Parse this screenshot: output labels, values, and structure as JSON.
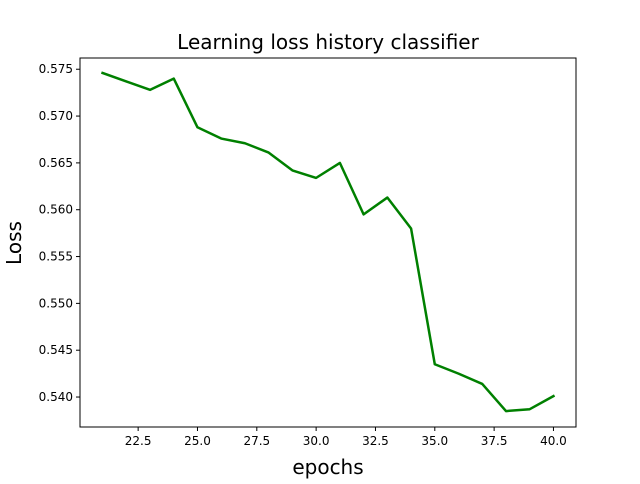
{
  "chart_data": {
    "type": "line",
    "title": "Learning loss history classifier",
    "xlabel": "epochs",
    "ylabel": "Loss",
    "xlim": [
      20.05,
      40.95
    ],
    "ylim": [
      0.5368,
      0.5762
    ],
    "xticks": [
      22.5,
      25.0,
      27.5,
      30.0,
      32.5,
      35.0,
      37.5,
      40.0
    ],
    "xtick_labels": [
      "22.5",
      "25.0",
      "27.5",
      "30.0",
      "32.5",
      "35.0",
      "37.5",
      "40.0"
    ],
    "yticks": [
      0.54,
      0.545,
      0.55,
      0.555,
      0.56,
      0.565,
      0.57,
      0.575
    ],
    "ytick_labels": [
      "0.540",
      "0.545",
      "0.550",
      "0.555",
      "0.560",
      "0.565",
      "0.570",
      "0.575"
    ],
    "grid": false,
    "series": [
      {
        "color": "#008000",
        "x": [
          21,
          22,
          23,
          24,
          25,
          26,
          27,
          28,
          29,
          30,
          31,
          32,
          33,
          34,
          35,
          36,
          37,
          38,
          39,
          40
        ],
        "y": [
          0.5746,
          0.5737,
          0.5728,
          0.574,
          0.5688,
          0.5676,
          0.5671,
          0.5661,
          0.5642,
          0.5634,
          0.565,
          0.5595,
          0.5613,
          0.558,
          0.5435,
          0.5425,
          0.5414,
          0.5385,
          0.5387,
          0.5401
        ]
      }
    ]
  }
}
